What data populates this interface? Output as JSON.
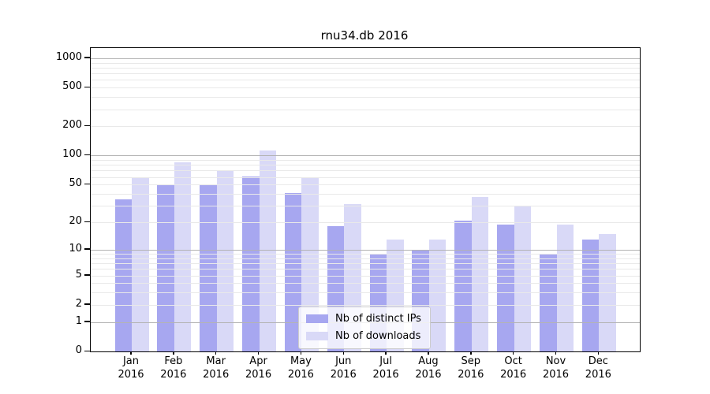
{
  "chart_data": {
    "type": "bar",
    "title": "rnu34.db 2016",
    "categories": [
      "Jan",
      "Feb",
      "Mar",
      "Apr",
      "May",
      "Jun",
      "Jul",
      "Aug",
      "Sep",
      "Oct",
      "Nov",
      "Dec"
    ],
    "year": "2016",
    "series": [
      {
        "key": "distinct-ips",
        "name": "Nb of distinct IPs",
        "color": "#a7a7f0",
        "values": [
          35,
          50,
          50,
          61,
          41,
          18,
          9,
          10,
          21,
          19,
          9,
          13
        ]
      },
      {
        "key": "downloads",
        "name": "Nb of downloads",
        "color": "#d9d9f7",
        "values": [
          60,
          85,
          71,
          113,
          60,
          31,
          13,
          13,
          37,
          30,
          19,
          15
        ]
      }
    ],
    "y_scale": "log1p",
    "y_ticks": [
      0,
      1,
      2,
      5,
      10,
      20,
      50,
      100,
      200,
      500,
      1000
    ],
    "y_major_gridlines": [
      1,
      10,
      100,
      1000
    ],
    "ylim": [
      0,
      1270
    ],
    "xlabel": "",
    "ylabel": "",
    "legend": {
      "position": "lower-center",
      "labels": [
        "Nb of distinct IPs",
        "Nb of downloads"
      ]
    },
    "grid": {
      "major_color": "#b3b3b3",
      "minor_color": "#e9e9e9"
    }
  }
}
